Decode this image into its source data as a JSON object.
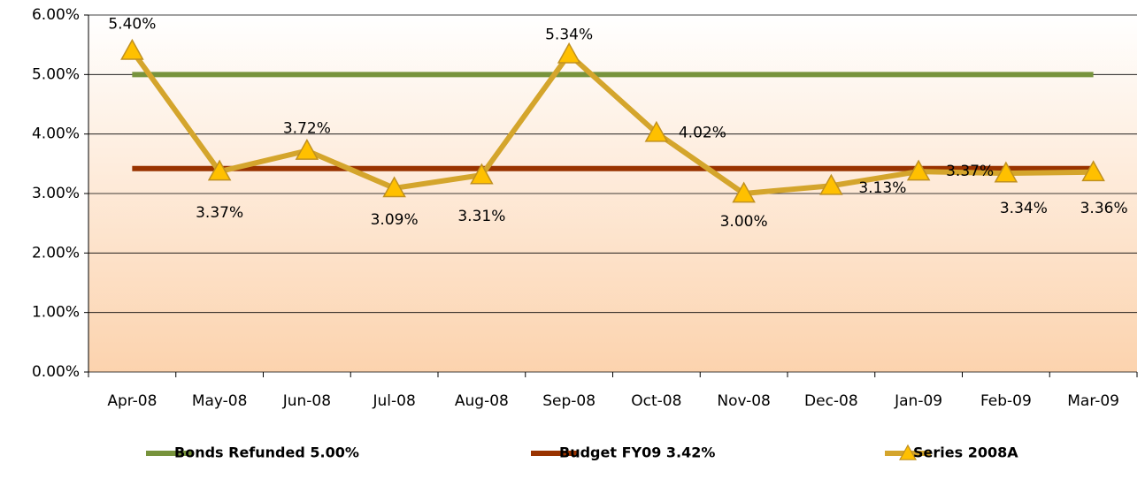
{
  "chart_data": {
    "type": "line",
    "categories": [
      "Apr-08",
      "May-08",
      "Jun-08",
      "Jul-08",
      "Aug-08",
      "Sep-08",
      "Oct-08",
      "Nov-08",
      "Dec-08",
      "Jan-09",
      "Feb-09",
      "Mar-09"
    ],
    "series": [
      {
        "name": "Bonds Refunded 5.00%",
        "color": "#77933c",
        "values": [
          5,
          5,
          5,
          5,
          5,
          5,
          5,
          5,
          5,
          5,
          5,
          5
        ]
      },
      {
        "name": "Budget FY09 3.42%",
        "color": "#993300",
        "values": [
          3.42,
          3.42,
          3.42,
          3.42,
          3.42,
          3.42,
          3.42,
          3.42,
          3.42,
          3.42,
          3.42,
          3.42
        ]
      },
      {
        "name": "Series 2008A",
        "color": "#d4a52c",
        "marker": "triangle",
        "marker_color": "#ffc000",
        "values": [
          5.4,
          3.37,
          3.72,
          3.09,
          3.31,
          5.34,
          4.02,
          3.0,
          3.13,
          3.37,
          3.34,
          3.36
        ],
        "value_labels": [
          "5.40%",
          "3.37%",
          "3.72%",
          "3.09%",
          "3.31%",
          "5.34%",
          "4.02%",
          "3.00%",
          "3.13%",
          "3.37%",
          "3.34%",
          "3.36%"
        ]
      }
    ],
    "ylim": [
      0,
      6
    ],
    "yticks": [
      {
        "value": 0,
        "label": "0.00%"
      },
      {
        "value": 1,
        "label": "1.00%"
      },
      {
        "value": 2,
        "label": "2.00%"
      },
      {
        "value": 3,
        "label": "3.00%"
      },
      {
        "value": 4,
        "label": "4.00%"
      },
      {
        "value": 5,
        "label": "5.00%"
      },
      {
        "value": 6,
        "label": "6.00%"
      }
    ],
    "grid": true,
    "legend": "bottom"
  }
}
